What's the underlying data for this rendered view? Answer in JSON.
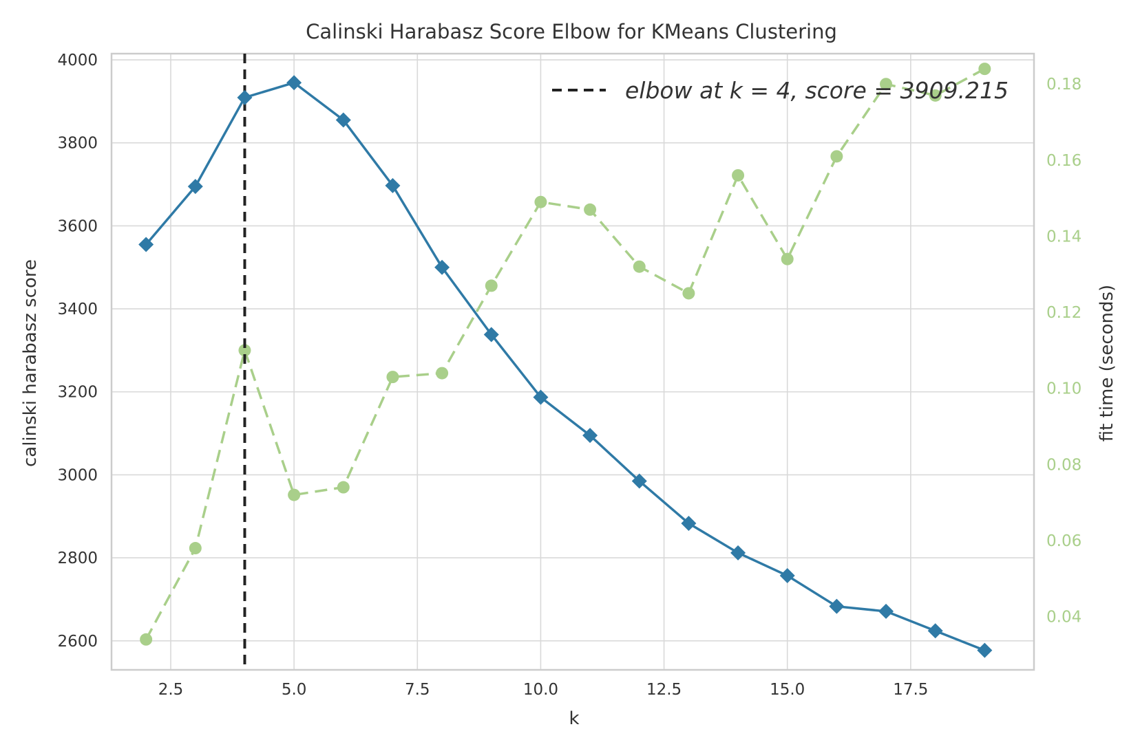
{
  "chart_data": {
    "type": "line",
    "title": "Calinski Harabasz Score Elbow for KMeans Clustering",
    "xlabel": "k",
    "ylabel": "calinski harabasz score",
    "y2label": "fit time (seconds)",
    "xlim": [
      1.3,
      20.0
    ],
    "ylim": [
      2530,
      4015
    ],
    "y2lim": [
      0.026,
      0.188
    ],
    "xticks": [
      "2.5",
      "5.0",
      "7.5",
      "10.0",
      "12.5",
      "15.0",
      "17.5"
    ],
    "xtick_values": [
      2.5,
      5.0,
      7.5,
      10.0,
      12.5,
      15.0,
      17.5
    ],
    "yticks": [
      "2600",
      "2800",
      "3000",
      "3200",
      "3400",
      "3600",
      "3800",
      "4000"
    ],
    "ytick_values": [
      2600,
      2800,
      3000,
      3200,
      3400,
      3600,
      3800,
      4000
    ],
    "y2ticks": [
      "0.04",
      "0.06",
      "0.08",
      "0.10",
      "0.12",
      "0.14",
      "0.16",
      "0.18"
    ],
    "y2tick_values": [
      0.04,
      0.06,
      0.08,
      0.1,
      0.12,
      0.14,
      0.16,
      0.18
    ],
    "grid": true,
    "legend_position": "top-right",
    "elbow": {
      "k": 4,
      "legend_label": "elbow at k = 4, score = 3909.215",
      "color": "#222222"
    },
    "series": [
      {
        "name": "calinski harabasz score",
        "axis": "left",
        "color": "#2f7aa6",
        "marker": "diamond",
        "x": [
          2,
          3,
          4,
          5,
          6,
          7,
          8,
          9,
          10,
          11,
          12,
          13,
          14,
          15,
          16,
          17,
          18,
          19
        ],
        "values": [
          3555,
          3695,
          3909.215,
          3945,
          3855,
          3697,
          3500,
          3338,
          3187,
          3095,
          2985,
          2883,
          2812,
          2757,
          2683,
          2671,
          2624,
          2577
        ]
      },
      {
        "name": "fit time (seconds)",
        "axis": "right",
        "color": "#a9cf8a",
        "marker": "circle",
        "x": [
          2,
          3,
          4,
          5,
          6,
          7,
          8,
          9,
          10,
          11,
          12,
          13,
          14,
          15,
          16,
          17,
          18,
          19
        ],
        "values": [
          0.034,
          0.058,
          0.11,
          0.072,
          0.074,
          0.103,
          0.104,
          0.127,
          0.149,
          0.147,
          0.132,
          0.125,
          0.156,
          0.134,
          0.161,
          0.18,
          0.177,
          0.184
        ]
      }
    ]
  }
}
